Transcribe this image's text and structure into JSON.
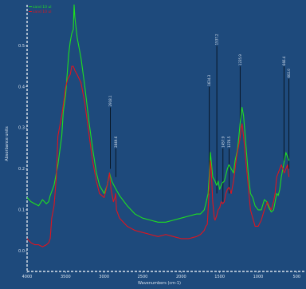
{
  "colors": {
    "background": "#1e4a7c",
    "axis": "#ffffff",
    "series_green": "#1fe01f",
    "series_red": "#e0141e",
    "text": "#d8e2ee",
    "peak_line": "#000000"
  },
  "chart_data": {
    "type": "line",
    "title": "",
    "xlabel": "Wavenumbers (cm-1)",
    "ylabel": "Absorbance units",
    "xlim": [
      4000,
      400
    ],
    "ylim": [
      -0.05,
      0.6
    ],
    "x_reversed": true,
    "grid": false,
    "legend_position": "top-left",
    "x_ticks": [
      "4000",
      "3500",
      "3000",
      "2500",
      "2000",
      "1500",
      "1000",
      "500"
    ],
    "y_ticks": [
      "0.0",
      "0.1",
      "0.2",
      "0.3",
      "0.4",
      "0.5"
    ],
    "y_tick_values": [
      0.0,
      0.1,
      0.2,
      0.3,
      0.4,
      0.5
    ],
    "x_tick_values": [
      4000,
      3500,
      3000,
      2500,
      2000,
      1500,
      1000,
      500
    ],
    "series": [
      {
        "name": "sand 10 ul",
        "color": "#1fe01f",
        "points": [
          [
            4000,
            0.13
          ],
          [
            3950,
            0.12
          ],
          [
            3900,
            0.115
          ],
          [
            3850,
            0.11
          ],
          [
            3800,
            0.125
          ],
          [
            3750,
            0.115
          ],
          [
            3720,
            0.12
          ],
          [
            3700,
            0.135
          ],
          [
            3650,
            0.16
          ],
          [
            3600,
            0.21
          ],
          [
            3550,
            0.28
          ],
          [
            3530,
            0.34
          ],
          [
            3500,
            0.38
          ],
          [
            3480,
            0.43
          ],
          [
            3460,
            0.48
          ],
          [
            3440,
            0.51
          ],
          [
            3420,
            0.53
          ],
          [
            3400,
            0.54
          ],
          [
            3390,
            0.6
          ],
          [
            3380,
            0.57
          ],
          [
            3350,
            0.52
          ],
          [
            3300,
            0.47
          ],
          [
            3250,
            0.4
          ],
          [
            3200,
            0.32
          ],
          [
            3150,
            0.25
          ],
          [
            3100,
            0.19
          ],
          [
            3060,
            0.16
          ],
          [
            3000,
            0.14
          ],
          [
            2960,
            0.16
          ],
          [
            2930,
            0.19
          ],
          [
            2900,
            0.17
          ],
          [
            2860,
            0.155
          ],
          [
            2800,
            0.135
          ],
          [
            2700,
            0.11
          ],
          [
            2600,
            0.09
          ],
          [
            2500,
            0.08
          ],
          [
            2400,
            0.075
          ],
          [
            2300,
            0.07
          ],
          [
            2200,
            0.07
          ],
          [
            2100,
            0.075
          ],
          [
            2000,
            0.08
          ],
          [
            1900,
            0.085
          ],
          [
            1800,
            0.09
          ],
          [
            1750,
            0.09
          ],
          [
            1700,
            0.1
          ],
          [
            1680,
            0.115
          ],
          [
            1650,
            0.14
          ],
          [
            1630,
            0.2
          ],
          [
            1620,
            0.24
          ],
          [
            1610,
            0.22
          ],
          [
            1590,
            0.18
          ],
          [
            1560,
            0.17
          ],
          [
            1540,
            0.16
          ],
          [
            1520,
            0.17
          ],
          [
            1500,
            0.15
          ],
          [
            1470,
            0.165
          ],
          [
            1440,
            0.17
          ],
          [
            1400,
            0.2
          ],
          [
            1380,
            0.21
          ],
          [
            1350,
            0.2
          ],
          [
            1320,
            0.19
          ],
          [
            1300,
            0.22
          ],
          [
            1270,
            0.245
          ],
          [
            1250,
            0.28
          ],
          [
            1230,
            0.32
          ],
          [
            1210,
            0.35
          ],
          [
            1190,
            0.33
          ],
          [
            1160,
            0.26
          ],
          [
            1130,
            0.19
          ],
          [
            1100,
            0.14
          ],
          [
            1070,
            0.13
          ],
          [
            1040,
            0.11
          ],
          [
            1000,
            0.1
          ],
          [
            960,
            0.1
          ],
          [
            920,
            0.125
          ],
          [
            890,
            0.12
          ],
          [
            860,
            0.105
          ],
          [
            830,
            0.095
          ],
          [
            800,
            0.1
          ],
          [
            780,
            0.12
          ],
          [
            760,
            0.14
          ],
          [
            740,
            0.135
          ],
          [
            720,
            0.15
          ],
          [
            700,
            0.18
          ],
          [
            680,
            0.2
          ],
          [
            660,
            0.22
          ],
          [
            640,
            0.24
          ],
          [
            620,
            0.23
          ],
          [
            600,
            0.22
          ]
        ]
      },
      {
        "name": "sand 10 ul",
        "color": "#e0141e",
        "points": [
          [
            4000,
            0.03
          ],
          [
            3950,
            0.02
          ],
          [
            3900,
            0.015
          ],
          [
            3850,
            0.015
          ],
          [
            3800,
            0.01
          ],
          [
            3750,
            0.015
          ],
          [
            3720,
            0.02
          ],
          [
            3700,
            0.03
          ],
          [
            3680,
            0.08
          ],
          [
            3650,
            0.11
          ],
          [
            3620,
            0.18
          ],
          [
            3600,
            0.28
          ],
          [
            3570,
            0.31
          ],
          [
            3550,
            0.33
          ],
          [
            3520,
            0.37
          ],
          [
            3500,
            0.4
          ],
          [
            3470,
            0.42
          ],
          [
            3440,
            0.43
          ],
          [
            3420,
            0.45
          ],
          [
            3400,
            0.45
          ],
          [
            3380,
            0.44
          ],
          [
            3350,
            0.43
          ],
          [
            3300,
            0.41
          ],
          [
            3250,
            0.36
          ],
          [
            3200,
            0.29
          ],
          [
            3150,
            0.22
          ],
          [
            3100,
            0.17
          ],
          [
            3060,
            0.14
          ],
          [
            3000,
            0.13
          ],
          [
            2960,
            0.16
          ],
          [
            2930,
            0.19
          ],
          [
            2910,
            0.15
          ],
          [
            2880,
            0.12
          ],
          [
            2860,
            0.13
          ],
          [
            2850,
            0.14
          ],
          [
            2840,
            0.1
          ],
          [
            2800,
            0.08
          ],
          [
            2750,
            0.07
          ],
          [
            2700,
            0.06
          ],
          [
            2650,
            0.055
          ],
          [
            2600,
            0.05
          ],
          [
            2500,
            0.045
          ],
          [
            2400,
            0.04
          ],
          [
            2300,
            0.035
          ],
          [
            2200,
            0.04
          ],
          [
            2100,
            0.035
          ],
          [
            2000,
            0.03
          ],
          [
            1900,
            0.03
          ],
          [
            1800,
            0.035
          ],
          [
            1750,
            0.04
          ],
          [
            1700,
            0.05
          ],
          [
            1680,
            0.06
          ],
          [
            1660,
            0.065
          ],
          [
            1650,
            0.1
          ],
          [
            1630,
            0.18
          ],
          [
            1620,
            0.22
          ],
          [
            1610,
            0.2
          ],
          [
            1590,
            0.12
          ],
          [
            1570,
            0.08
          ],
          [
            1560,
            0.075
          ],
          [
            1540,
            0.085
          ],
          [
            1520,
            0.1
          ],
          [
            1500,
            0.105
          ],
          [
            1480,
            0.12
          ],
          [
            1460,
            0.115
          ],
          [
            1440,
            0.12
          ],
          [
            1420,
            0.14
          ],
          [
            1400,
            0.15
          ],
          [
            1380,
            0.155
          ],
          [
            1350,
            0.14
          ],
          [
            1320,
            0.17
          ],
          [
            1300,
            0.2
          ],
          [
            1280,
            0.23
          ],
          [
            1260,
            0.25
          ],
          [
            1240,
            0.27
          ],
          [
            1220,
            0.3
          ],
          [
            1210,
            0.31
          ],
          [
            1190,
            0.28
          ],
          [
            1160,
            0.22
          ],
          [
            1130,
            0.16
          ],
          [
            1100,
            0.1
          ],
          [
            1070,
            0.08
          ],
          [
            1040,
            0.06
          ],
          [
            1000,
            0.06
          ],
          [
            960,
            0.075
          ],
          [
            920,
            0.1
          ],
          [
            880,
            0.12
          ],
          [
            860,
            0.11
          ],
          [
            830,
            0.1
          ],
          [
            800,
            0.12
          ],
          [
            780,
            0.14
          ],
          [
            760,
            0.18
          ],
          [
            740,
            0.19
          ],
          [
            720,
            0.2
          ],
          [
            700,
            0.21
          ],
          [
            680,
            0.2
          ],
          [
            660,
            0.19
          ],
          [
            640,
            0.2
          ],
          [
            620,
            0.21
          ],
          [
            600,
            0.18
          ]
        ]
      }
    ],
    "peak_annotations": [
      {
        "x": 2918,
        "label": "2918.1",
        "y_top": 0.35,
        "y_bottom": 0.2
      },
      {
        "x": 2849,
        "label": "2849.6",
        "y_top": 0.25,
        "y_bottom": 0.18
      },
      {
        "x": 1634,
        "label": "1634.3",
        "y_top": 0.4,
        "y_bottom": 0.14
      },
      {
        "x": 1537,
        "label": "1537.2",
        "y_top": 0.5,
        "y_bottom": 0.14
      },
      {
        "x": 1457,
        "label": "1457.9",
        "y_top": 0.25,
        "y_bottom": 0.12
      },
      {
        "x": 1376,
        "label": "1376.5",
        "y_top": 0.25,
        "y_bottom": 0.14
      },
      {
        "x": 1235,
        "label": "1235.9",
        "y_top": 0.45,
        "y_bottom": 0.31
      },
      {
        "x": 666,
        "label": "666.4",
        "y_top": 0.45,
        "y_bottom": 0.22
      },
      {
        "x": 602,
        "label": "602.0",
        "y_top": 0.42,
        "y_bottom": 0.2
      }
    ]
  }
}
